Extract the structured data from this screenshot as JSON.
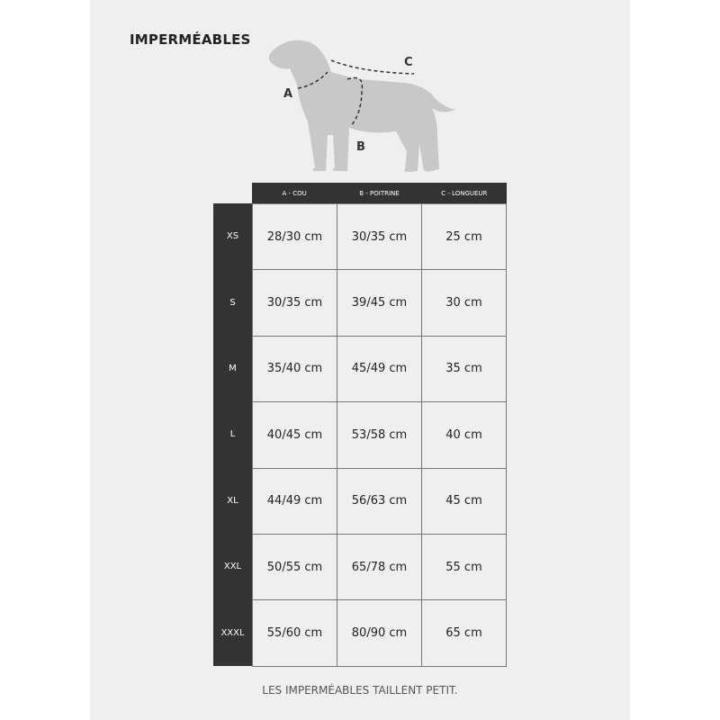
{
  "title": "IMPERMÉABLES",
  "diagram_labels": {
    "a": "A",
    "b": "B",
    "c": "C"
  },
  "table": {
    "headers": [
      "A - COU",
      "B - POITRINE",
      "C - LONGUEUR"
    ],
    "rows": [
      {
        "size": "XS",
        "values": [
          "28/30 cm",
          "30/35 cm",
          "25 cm"
        ]
      },
      {
        "size": "S",
        "values": [
          "30/35 cm",
          "39/45 cm",
          "30 cm"
        ]
      },
      {
        "size": "M",
        "values": [
          "35/40 cm",
          "45/49 cm",
          "35 cm"
        ]
      },
      {
        "size": "L",
        "values": [
          "40/45 cm",
          "53/58 cm",
          "40 cm"
        ]
      },
      {
        "size": "XL",
        "values": [
          "44/49 cm",
          "56/63 cm",
          "45 cm"
        ]
      },
      {
        "size": "XXL",
        "values": [
          "50/55 cm",
          "65/78 cm",
          "55 cm"
        ]
      },
      {
        "size": "XXXL",
        "values": [
          "55/60 cm",
          "80/90 cm",
          "65 cm"
        ]
      }
    ]
  },
  "note": "LES IMPERMÉABLES TAILLENT PETIT."
}
